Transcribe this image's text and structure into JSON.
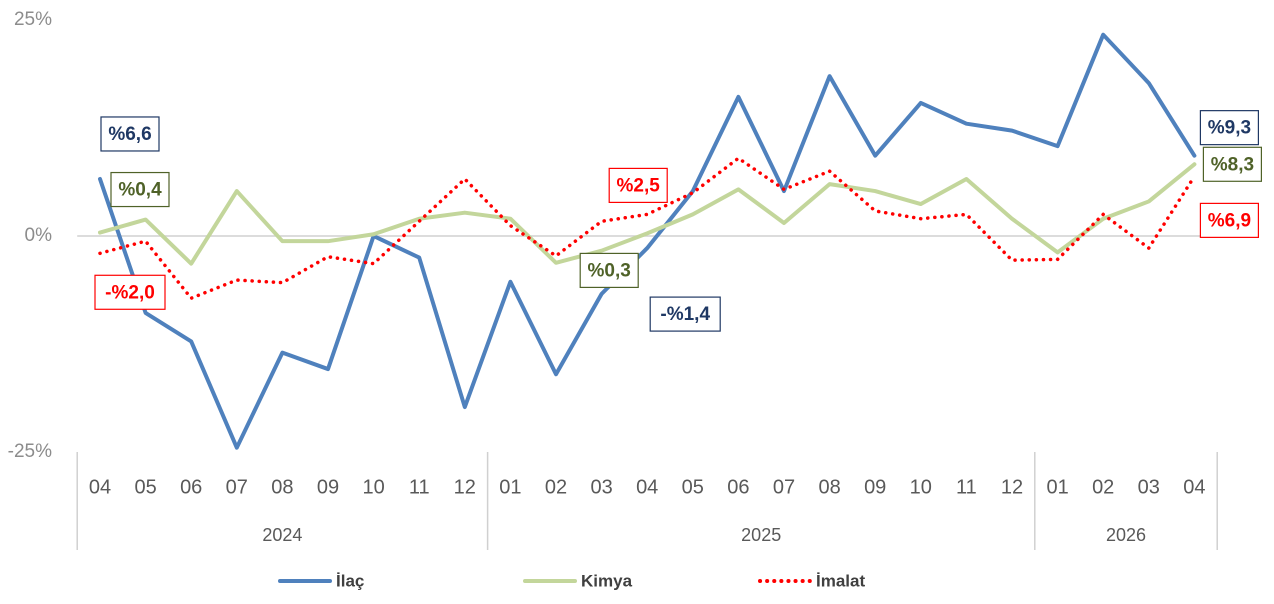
{
  "chart_data": {
    "type": "line",
    "groups": [
      {
        "name": "2024",
        "categories": [
          "04",
          "05",
          "06",
          "07",
          "08",
          "09",
          "10",
          "11",
          "12"
        ]
      },
      {
        "name": "2025",
        "categories": [
          "01",
          "02",
          "03",
          "04",
          "05",
          "06",
          "07",
          "08",
          "09",
          "10",
          "11",
          "12"
        ]
      },
      {
        "name": "2026",
        "categories": [
          "01",
          "02",
          "03",
          "04"
        ]
      }
    ],
    "ylim": [
      -25,
      25
    ],
    "yticks": [
      {
        "value": -25,
        "label": "-25%"
      },
      {
        "value": 0,
        "label": "0%"
      },
      {
        "value": 25,
        "label": "25%"
      }
    ],
    "series": [
      {
        "name": "İlaç",
        "color": "#4f81bd",
        "style": "solid",
        "values": [
          6.6,
          -8.9,
          -12.2,
          -24.5,
          -13.5,
          -15.4,
          0,
          -2.5,
          -19.8,
          -5.3,
          -16,
          -6.7,
          -1.4,
          5.2,
          16.1,
          5.2,
          18.5,
          9.3,
          15.4,
          13,
          12.2,
          10.4,
          23.3,
          17.7,
          9.3
        ],
        "value_labels": [
          "%6,6",
          null,
          null,
          null,
          null,
          null,
          null,
          null,
          null,
          null,
          null,
          null,
          "-%1,4",
          null,
          null,
          null,
          null,
          null,
          null,
          null,
          null,
          null,
          null,
          null,
          "%9,3"
        ]
      },
      {
        "name": "Kimya",
        "color": "#c3d69b",
        "style": "solid",
        "values": [
          0.4,
          1.9,
          -3.2,
          5.2,
          -0.6,
          -0.6,
          0.2,
          2,
          2.7,
          2,
          -3.1,
          -1.7,
          0.3,
          2.5,
          5.4,
          1.5,
          6,
          5.2,
          3.7,
          6.6,
          2,
          -1.9,
          2,
          4,
          8.3
        ],
        "value_labels": [
          "%0,4",
          null,
          null,
          null,
          null,
          null,
          null,
          null,
          null,
          null,
          null,
          null,
          "%0,3",
          null,
          null,
          null,
          null,
          null,
          null,
          null,
          null,
          null,
          null,
          null,
          "%8,3"
        ]
      },
      {
        "name": "İmalat",
        "color": "#ff0000",
        "style": "dotted",
        "values": [
          -2.0,
          -0.6,
          -7.2,
          -5.1,
          -5.4,
          -2.4,
          -3.2,
          1.7,
          6.6,
          1.2,
          -2.3,
          1.7,
          2.5,
          5,
          9,
          5.4,
          7.5,
          2.9,
          2,
          2.5,
          -2.8,
          -2.7,
          2.5,
          -1.4,
          6.9
        ],
        "value_labels": [
          "-%2,0",
          null,
          null,
          null,
          null,
          null,
          null,
          null,
          null,
          null,
          null,
          null,
          "%2,5",
          null,
          null,
          null,
          null,
          null,
          null,
          null,
          null,
          null,
          null,
          null,
          "%6,9"
        ]
      }
    ]
  }
}
